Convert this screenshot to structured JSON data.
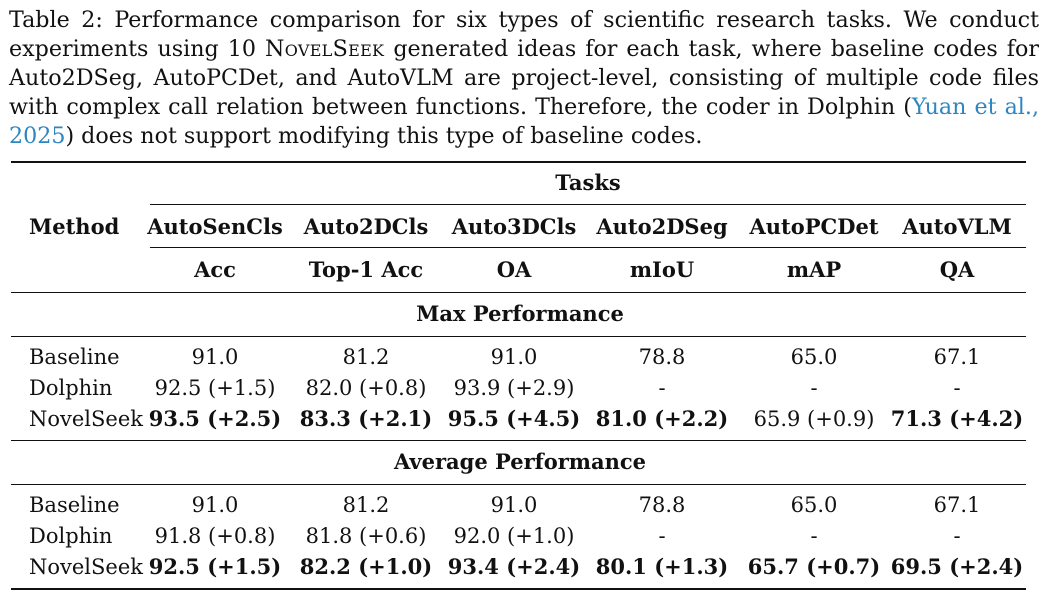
{
  "caption": {
    "line1": "Table 2: Performance comparison for six types of scientific research tasks. We conduct",
    "line2_pre": "experiments using 10",
    "line2_name": "NovelSeek",
    "line2_post": "generated ideas for each task, where baseline codes for",
    "line3": "Auto2DSeg, AutoPCDet, and AutoVLM are project-level, consisting of multiple code files",
    "line4_pre": "with complex call relation between functions. Therefore, the coder in Dolphin (",
    "cite_part1": "Yuan et al.,",
    "cite_part2": "2025",
    "line5_post": ") does not support modifying this type of baseline codes."
  },
  "table": {
    "tasks_header": "Tasks",
    "method_header": "Method",
    "columns": [
      {
        "task": "AutoSenCls",
        "metric": "Acc"
      },
      {
        "task": "Auto2DCls",
        "metric": "Top-1 Acc"
      },
      {
        "task": "Auto3DCls",
        "metric": "OA"
      },
      {
        "task": "Auto2DSeg",
        "metric": "mIoU"
      },
      {
        "task": "AutoPCDet",
        "metric": "mAP"
      },
      {
        "task": "AutoVLM",
        "metric": "QA"
      }
    ],
    "sections": [
      {
        "title": "Max Performance",
        "rows": [
          {
            "method": "Baseline",
            "values": [
              "91.0",
              "81.2",
              "91.0",
              "78.8",
              "65.0",
              "67.1"
            ],
            "bold": [
              false,
              false,
              false,
              false,
              false,
              false
            ]
          },
          {
            "method": "Dolphin",
            "values": [
              "92.5 (+1.5)",
              "82.0 (+0.8)",
              "93.9 (+2.9)",
              "-",
              "-",
              "-"
            ],
            "bold": [
              false,
              false,
              false,
              false,
              false,
              false
            ]
          },
          {
            "method": "NovelSeek",
            "values": [
              "93.5 (+2.5)",
              "83.3 (+2.1)",
              "95.5 (+4.5)",
              "81.0 (+2.2)",
              "65.9 (+0.9)",
              "71.3 (+4.2)"
            ],
            "bold": [
              true,
              true,
              true,
              true,
              false,
              true
            ]
          }
        ]
      },
      {
        "title": "Average Performance",
        "rows": [
          {
            "method": "Baseline",
            "values": [
              "91.0",
              "81.2",
              "91.0",
              "78.8",
              "65.0",
              "67.1"
            ],
            "bold": [
              false,
              false,
              false,
              false,
              false,
              false
            ]
          },
          {
            "method": "Dolphin",
            "values": [
              "91.8 (+0.8)",
              "81.8 (+0.6)",
              "92.0 (+1.0)",
              "-",
              "-",
              "-"
            ],
            "bold": [
              false,
              false,
              false,
              false,
              false,
              false
            ]
          },
          {
            "method": "NovelSeek",
            "values": [
              "92.5 (+1.5)",
              "82.2 (+1.0)",
              "93.4 (+2.4)",
              "80.1 (+1.3)",
              "65.7 (+0.7)",
              "69.5 (+2.4)"
            ],
            "bold": [
              true,
              true,
              true,
              true,
              true,
              true
            ]
          }
        ]
      }
    ]
  }
}
